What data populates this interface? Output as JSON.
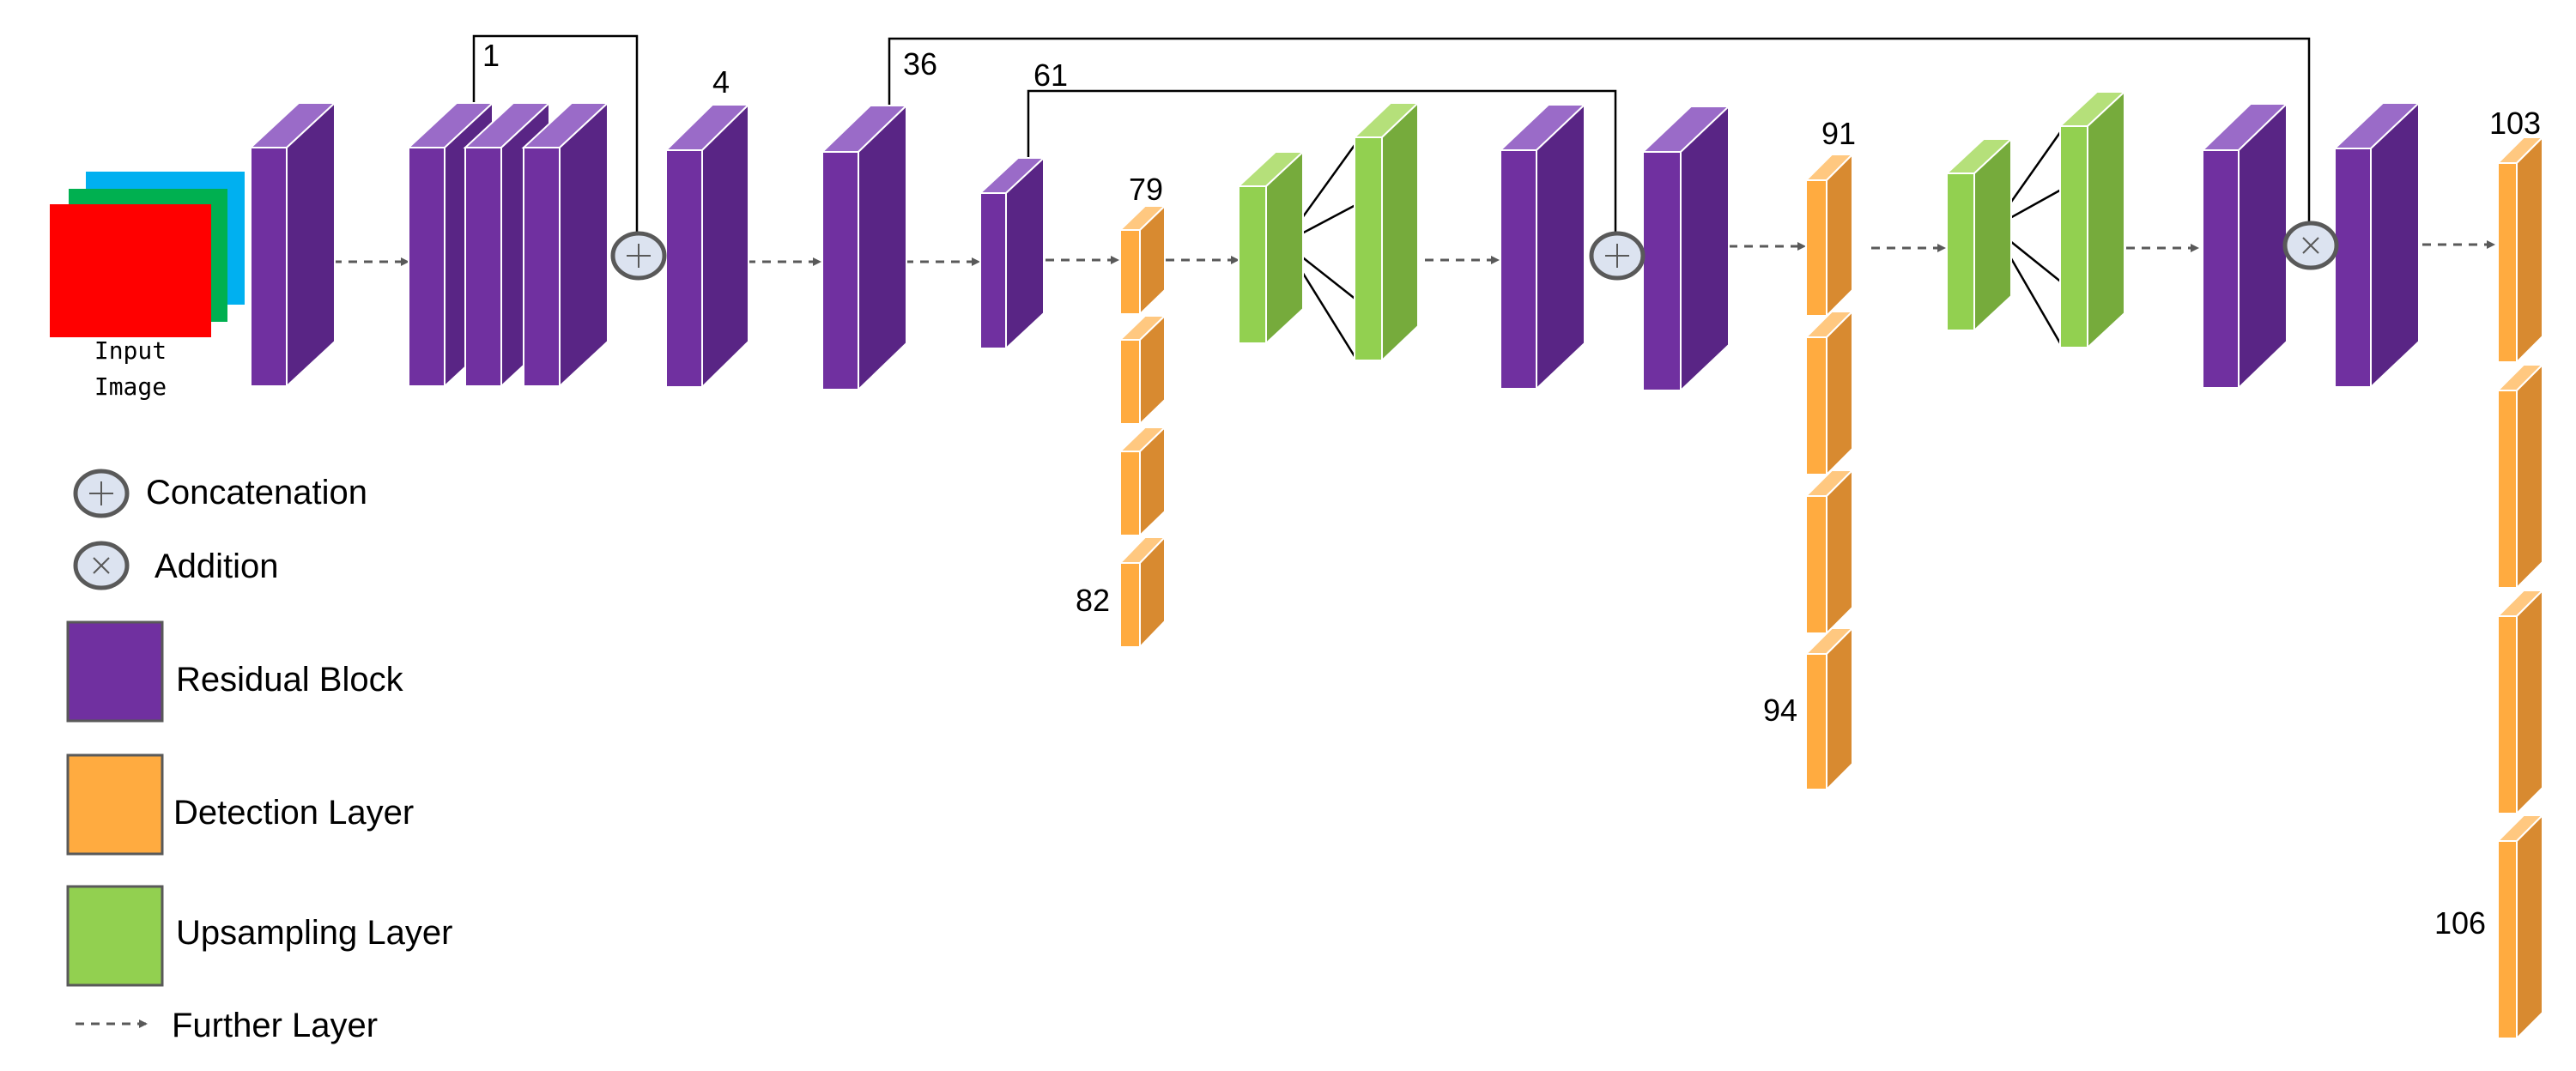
{
  "colors": {
    "residual": "#7030a0",
    "detection": "#ffab40",
    "upsampling": "#92d050",
    "input_red": "#ff0000",
    "input_green": "#00b050",
    "input_blue": "#00b0f0",
    "op_fill": "#dce3f0",
    "op_stroke": "#595959",
    "arrow": "#595959",
    "line": "#000000"
  },
  "input": {
    "label_line1": "Input",
    "label_line2": "Image"
  },
  "layer_labels": {
    "l1": "1",
    "l4": "4",
    "l36": "36",
    "l61": "61",
    "l79": "79",
    "l82": "82",
    "l91": "91",
    "l94": "94",
    "l103": "103",
    "l106": "106"
  },
  "legend": {
    "concatenation": "Concatenation",
    "addition": "Addition",
    "residual": "Residual Block",
    "detection": "Detection Layer",
    "upsampling": "Upsampling Layer",
    "further": "Further Layer"
  }
}
